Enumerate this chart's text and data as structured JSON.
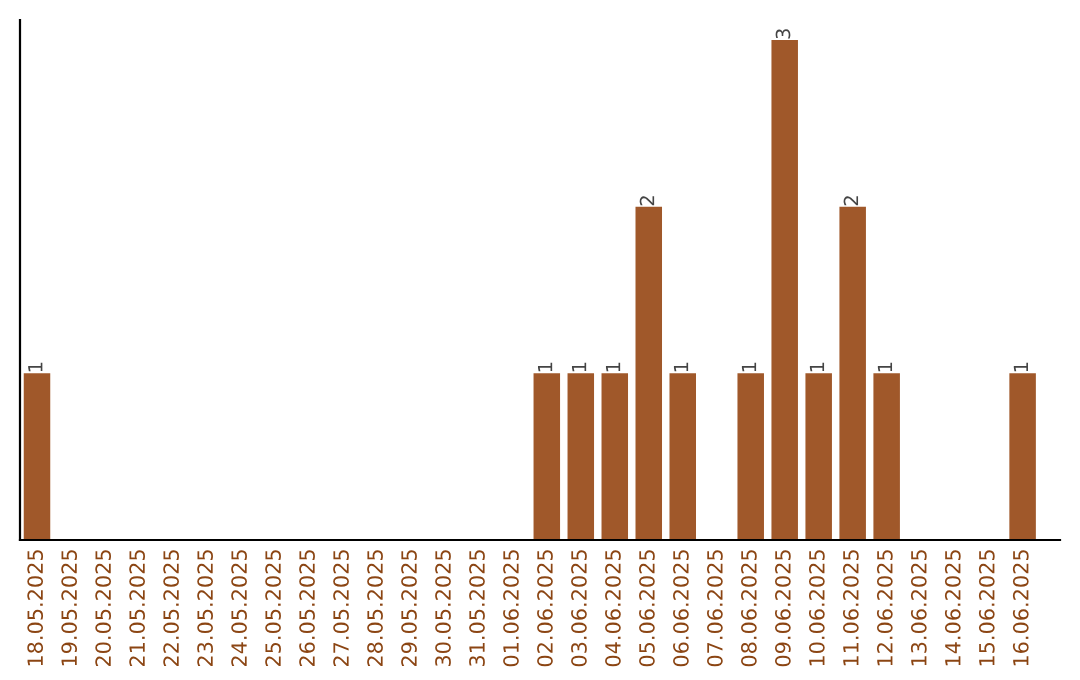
{
  "chart_data": {
    "type": "bar",
    "categories": [
      "18.05.2025",
      "19.05.2025",
      "20.05.2025",
      "21.05.2025",
      "22.05.2025",
      "23.05.2025",
      "24.05.2025",
      "25.05.2025",
      "26.05.2025",
      "27.05.2025",
      "28.05.2025",
      "29.05.2025",
      "30.05.2025",
      "31.05.2025",
      "01.06.2025",
      "02.06.2025",
      "03.06.2025",
      "04.06.2025",
      "05.06.2025",
      "06.06.2025",
      "07.06.2025",
      "08.06.2025",
      "09.06.2025",
      "10.06.2025",
      "11.06.2025",
      "12.06.2025",
      "13.06.2025",
      "14.06.2025",
      "15.06.2025",
      "16.06.2025"
    ],
    "values": [
      1,
      0,
      0,
      0,
      0,
      0,
      0,
      0,
      0,
      0,
      0,
      0,
      0,
      0,
      0,
      1,
      1,
      1,
      2,
      1,
      0,
      1,
      3,
      1,
      2,
      1,
      0,
      0,
      0,
      1
    ],
    "value_labels": [
      "1",
      null,
      null,
      null,
      null,
      null,
      null,
      null,
      null,
      null,
      null,
      null,
      null,
      null,
      null,
      "1",
      "1",
      "1",
      "2",
      "1",
      null,
      "1",
      "3",
      "1",
      "2",
      "1",
      null,
      null,
      null,
      "1"
    ],
    "color": "#a0582a",
    "tick_labels": "x",
    "grid": false,
    "legend": false
  }
}
